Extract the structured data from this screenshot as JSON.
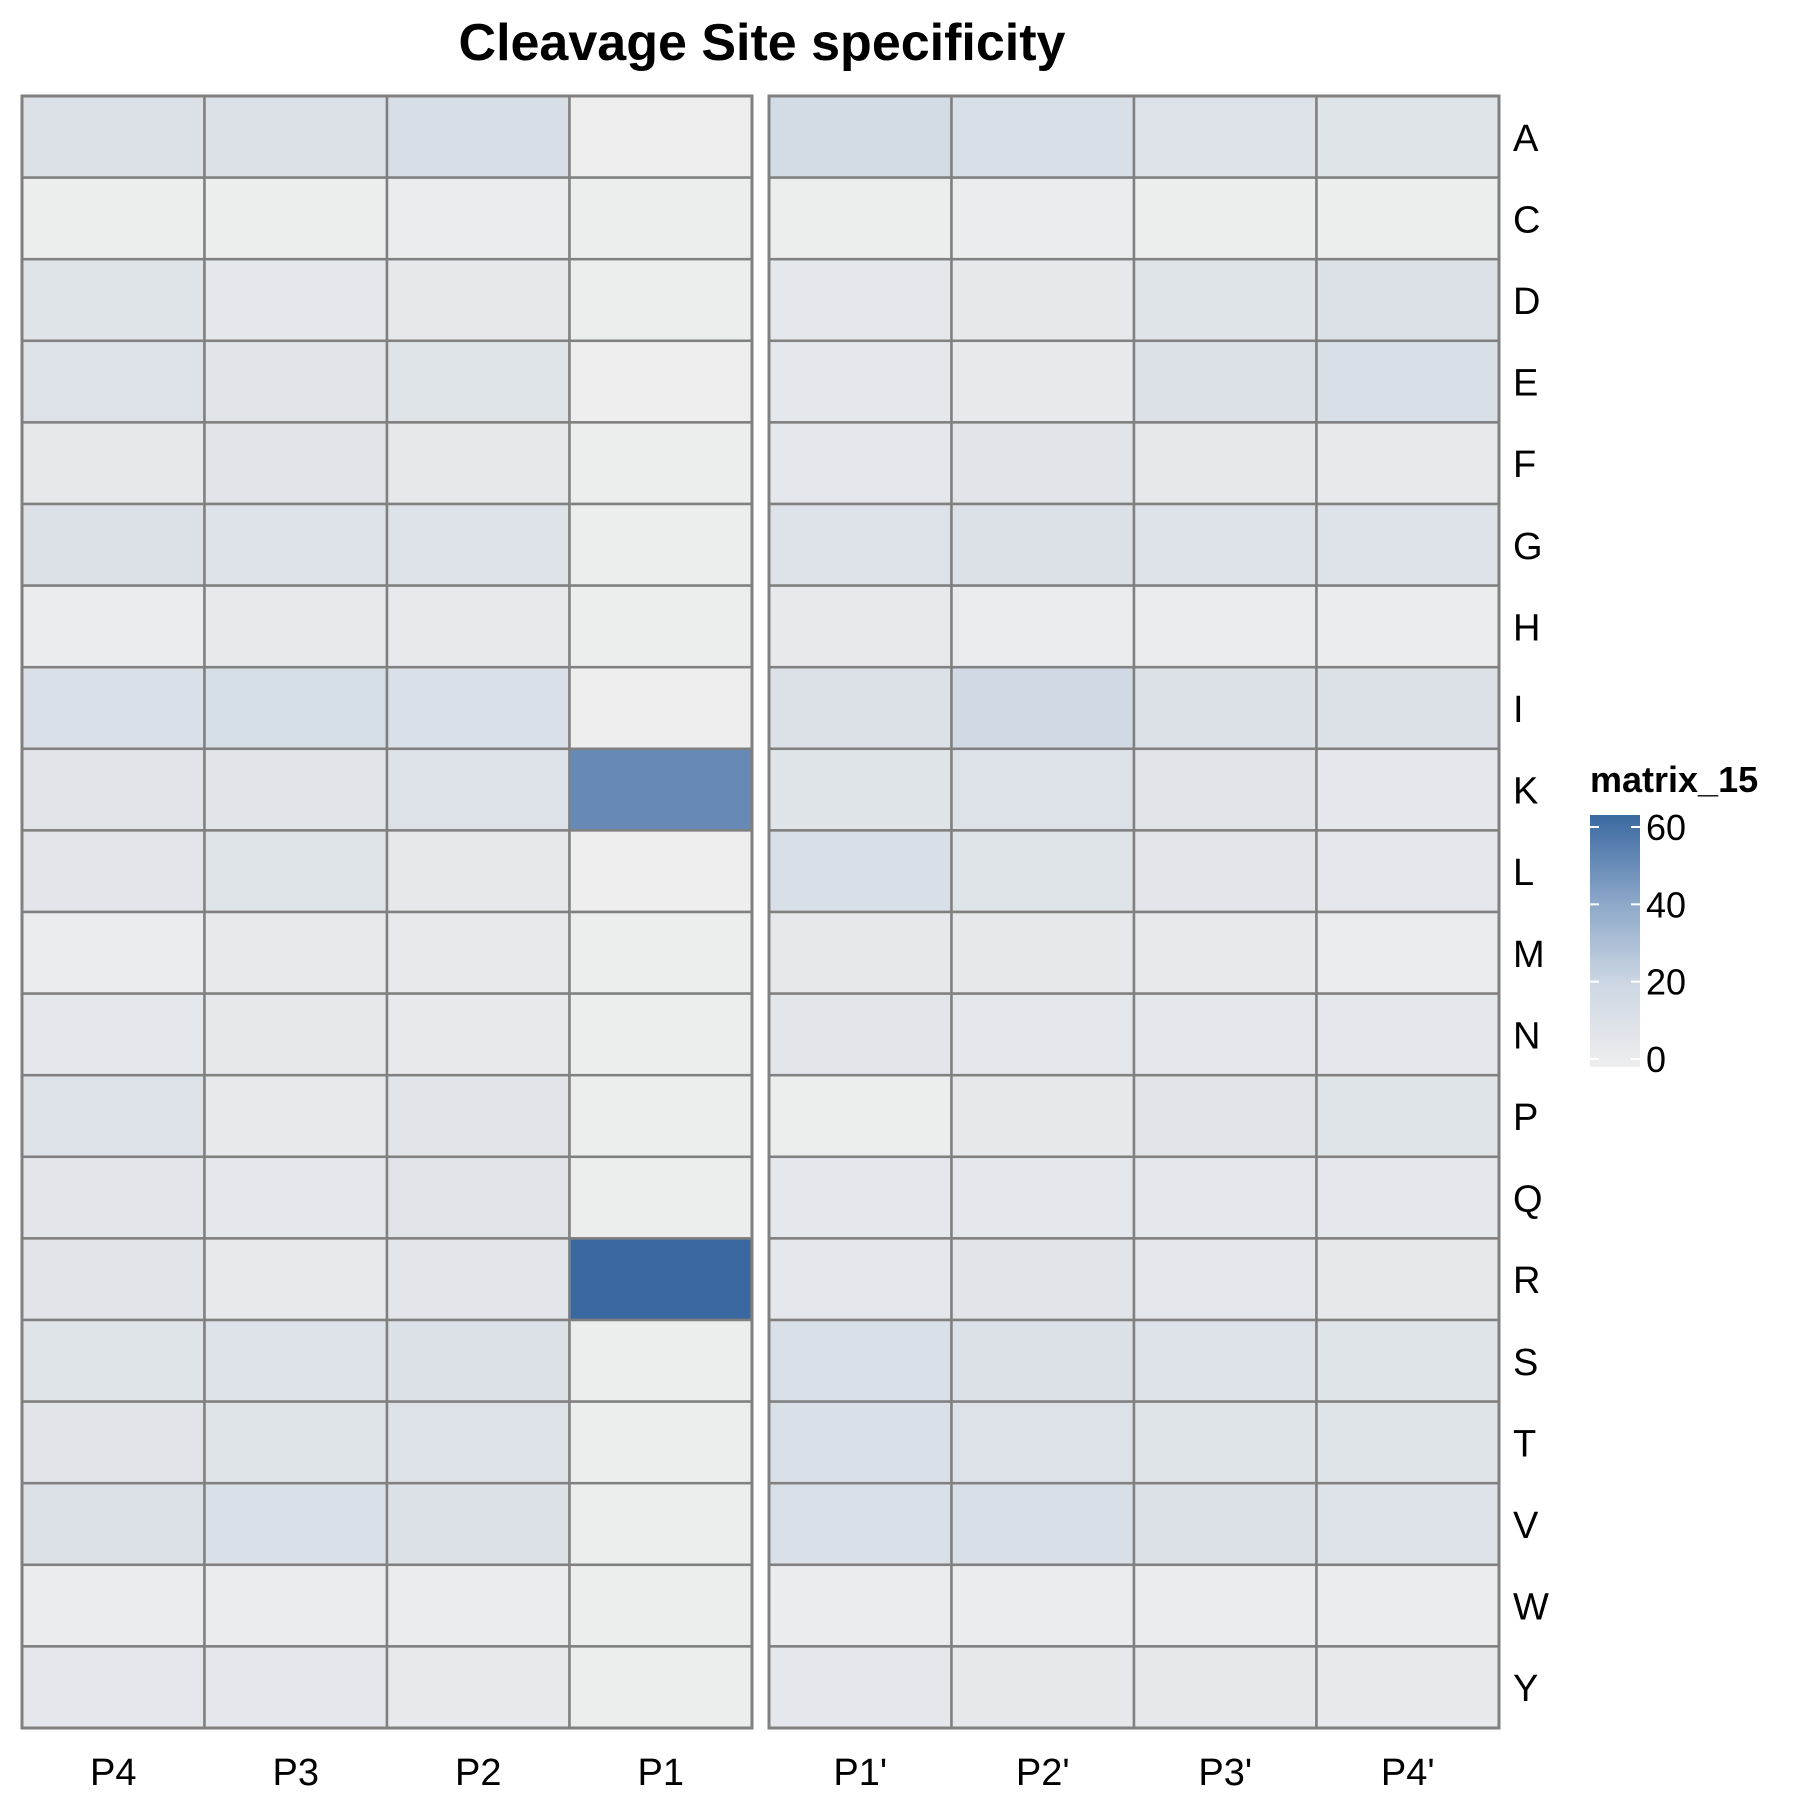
{
  "chart_data": {
    "type": "heatmap",
    "title": "Cleavage Site specificity",
    "columns": [
      "P4",
      "P3",
      "P2",
      "P1",
      "P1'",
      "P2'",
      "P3'",
      "P4'"
    ],
    "column_split": [
      [
        "P4",
        "P3",
        "P2",
        "P1"
      ],
      [
        "P1'",
        "P2'",
        "P3'",
        "P4'"
      ]
    ],
    "rows": [
      "A",
      "C",
      "D",
      "E",
      "F",
      "G",
      "H",
      "I",
      "K",
      "L",
      "M",
      "N",
      "P",
      "Q",
      "R",
      "S",
      "T",
      "V",
      "W",
      "Y"
    ],
    "values": [
      [
        11,
        11,
        14,
        0,
        16,
        13,
        10,
        9
      ],
      [
        1,
        1,
        2,
        1,
        1,
        2,
        1,
        1
      ],
      [
        9,
        6,
        5,
        1,
        6,
        5,
        9,
        11
      ],
      [
        10,
        8,
        9,
        0,
        6,
        4,
        11,
        13
      ],
      [
        5,
        8,
        5,
        1,
        6,
        8,
        5,
        4
      ],
      [
        11,
        10,
        10,
        1,
        10,
        11,
        10,
        10
      ],
      [
        2,
        4,
        4,
        1,
        4,
        3,
        3,
        2
      ],
      [
        12,
        15,
        12,
        0,
        11,
        18,
        11,
        11
      ],
      [
        8,
        8,
        10,
        48,
        9,
        10,
        8,
        6
      ],
      [
        7,
        9,
        5,
        0,
        13,
        9,
        7,
        6
      ],
      [
        2,
        4,
        4,
        1,
        5,
        5,
        4,
        3
      ],
      [
        6,
        5,
        4,
        1,
        7,
        6,
        6,
        6
      ],
      [
        10,
        4,
        8,
        1,
        1,
        5,
        8,
        9
      ],
      [
        7,
        6,
        8,
        1,
        6,
        6,
        6,
        6
      ],
      [
        8,
        4,
        7,
        60,
        6,
        8,
        6,
        5
      ],
      [
        9,
        10,
        11,
        1,
        12,
        11,
        10,
        9
      ],
      [
        8,
        9,
        10,
        1,
        12,
        10,
        9,
        9
      ],
      [
        11,
        12,
        11,
        1,
        12,
        13,
        11,
        10
      ],
      [
        2,
        2,
        2,
        1,
        2,
        2,
        2,
        2
      ],
      [
        6,
        6,
        4,
        1,
        6,
        5,
        5,
        4
      ]
    ],
    "legend": {
      "title": "matrix_15",
      "ticks": [
        0,
        20,
        40,
        60
      ],
      "placement": "right",
      "colors": [
        "#eeeeee",
        "#3a69a1"
      ],
      "range": [
        0,
        60
      ]
    },
    "cell_border_color": "#808080",
    "grid": false
  }
}
